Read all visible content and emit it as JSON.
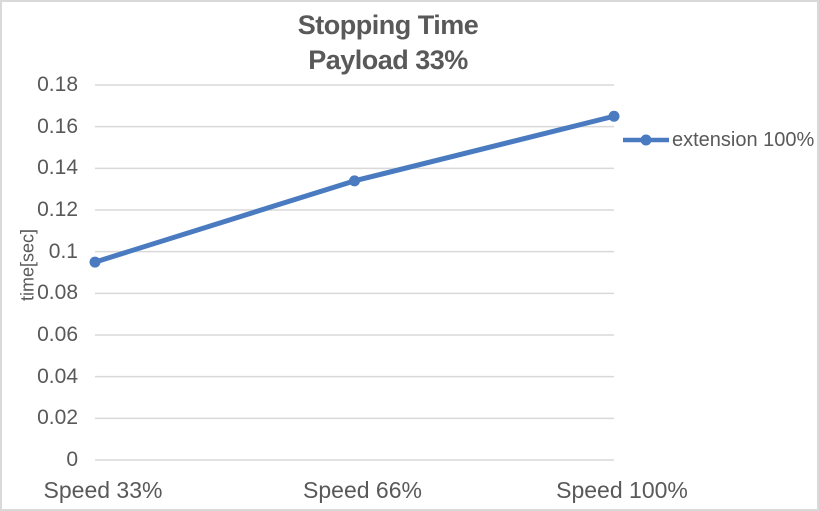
{
  "chart_data": {
    "type": "line",
    "title": "Stopping Time",
    "subtitle": "Payload 33%",
    "xlabel": "",
    "ylabel": "time[sec]",
    "categories": [
      "Speed 33%",
      "Speed 66%",
      "Speed 100%"
    ],
    "series": [
      {
        "name": "extension 100%",
        "values": [
          0.095,
          0.134,
          0.165
        ],
        "color": "#4A7BC0",
        "marker": "circle"
      }
    ],
    "ylim": [
      0,
      0.18
    ],
    "ytick_step": 0.02,
    "ytick_labels": [
      "0",
      "0.02",
      "0.04",
      "0.06",
      "0.08",
      "0.1",
      "0.12",
      "0.14",
      "0.16",
      "0.18"
    ],
    "grid": "horizontal",
    "legend_position": "right",
    "colors": {
      "gridline": "#D9D9D9",
      "text": "#595959",
      "border": "#D9D9D9",
      "background": "#FFFFFF"
    }
  }
}
